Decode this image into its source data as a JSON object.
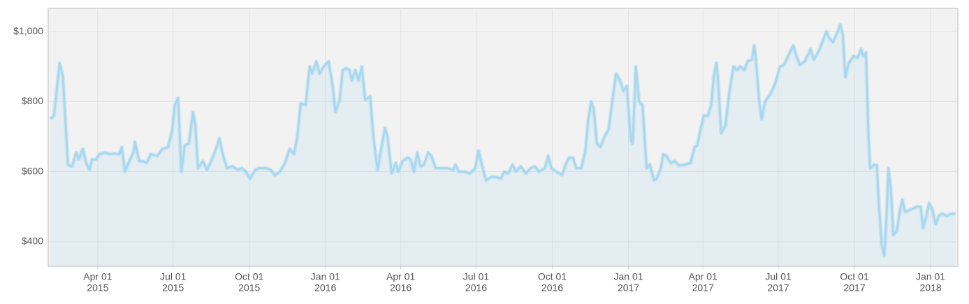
{
  "chart_data": {
    "type": "line",
    "x": [
      "2015-02-03",
      "2015-02-07",
      "2015-02-14",
      "2015-02-18",
      "2015-02-24",
      "2015-03-01",
      "2015-03-06",
      "2015-03-09",
      "2015-03-14",
      "2015-03-18",
      "2015-03-22",
      "2015-03-25",
      "2015-03-30",
      "2015-04-03",
      "2015-04-10",
      "2015-04-16",
      "2015-04-21",
      "2015-04-27",
      "2015-04-30",
      "2015-05-04",
      "2015-05-09",
      "2015-05-14",
      "2015-05-16",
      "2015-05-21",
      "2015-05-26",
      "2015-05-30",
      "2015-06-04",
      "2015-06-12",
      "2015-06-18",
      "2015-06-25",
      "2015-06-30",
      "2015-07-03",
      "2015-07-07",
      "2015-07-11",
      "2015-07-15",
      "2015-07-20",
      "2015-07-25",
      "2015-07-28",
      "2015-07-31",
      "2015-08-06",
      "2015-08-11",
      "2015-08-15",
      "2015-08-21",
      "2015-08-26",
      "2015-08-30",
      "2015-09-04",
      "2015-09-11",
      "2015-09-17",
      "2015-09-22",
      "2015-09-27",
      "2015-10-02",
      "2015-10-08",
      "2015-10-13",
      "2015-10-21",
      "2015-10-27",
      "2015-11-01",
      "2015-11-07",
      "2015-11-13",
      "2015-11-19",
      "2015-11-24",
      "2015-11-28",
      "2015-12-02",
      "2015-12-08",
      "2015-12-13",
      "2015-12-16",
      "2015-12-21",
      "2015-12-25",
      "2015-12-30",
      "2016-01-05",
      "2016-01-10",
      "2016-01-13",
      "2016-01-18",
      "2016-01-22",
      "2016-01-26",
      "2016-01-30",
      "2016-02-02",
      "2016-02-06",
      "2016-02-10",
      "2016-02-14",
      "2016-02-18",
      "2016-02-24",
      "2016-02-28",
      "2016-03-04",
      "2016-03-09",
      "2016-03-13",
      "2016-03-16",
      "2016-03-21",
      "2016-03-26",
      "2016-03-29",
      "2016-04-03",
      "2016-04-09",
      "2016-04-13",
      "2016-04-17",
      "2016-04-21",
      "2016-04-25",
      "2016-04-29",
      "2016-05-04",
      "2016-05-08",
      "2016-05-13",
      "2016-05-19",
      "2016-05-27",
      "2016-06-03",
      "2016-06-06",
      "2016-06-10",
      "2016-06-17",
      "2016-06-23",
      "2016-06-30",
      "2016-07-04",
      "2016-07-08",
      "2016-07-13",
      "2016-07-19",
      "2016-07-25",
      "2016-07-31",
      "2016-08-04",
      "2016-08-09",
      "2016-08-14",
      "2016-08-18",
      "2016-08-24",
      "2016-08-30",
      "2016-09-05",
      "2016-09-10",
      "2016-09-15",
      "2016-09-22",
      "2016-09-26",
      "2016-09-30",
      "2016-10-06",
      "2016-10-13",
      "2016-10-17",
      "2016-10-21",
      "2016-10-26",
      "2016-10-30",
      "2016-11-05",
      "2016-11-10",
      "2016-11-13",
      "2016-11-17",
      "2016-11-20",
      "2016-11-24",
      "2016-11-28",
      "2016-12-03",
      "2016-12-08",
      "2016-12-13",
      "2016-12-17",
      "2016-12-22",
      "2016-12-26",
      "2016-12-30",
      "2017-01-04",
      "2017-01-06",
      "2017-01-10",
      "2017-01-14",
      "2017-01-18",
      "2017-01-23",
      "2017-01-27",
      "2017-02-01",
      "2017-02-04",
      "2017-02-09",
      "2017-02-12",
      "2017-02-16",
      "2017-02-21",
      "2017-02-26",
      "2017-03-03",
      "2017-03-10",
      "2017-03-17",
      "2017-03-22",
      "2017-03-25",
      "2017-03-29",
      "2017-04-02",
      "2017-04-07",
      "2017-04-11",
      "2017-04-14",
      "2017-04-17",
      "2017-04-19",
      "2017-04-23",
      "2017-04-28",
      "2017-05-03",
      "2017-05-08",
      "2017-05-12",
      "2017-05-16",
      "2017-05-21",
      "2017-05-25",
      "2017-05-30",
      "2017-06-02",
      "2017-06-04",
      "2017-06-08",
      "2017-06-11",
      "2017-06-15",
      "2017-06-21",
      "2017-06-27",
      "2017-07-03",
      "2017-07-08",
      "2017-07-13",
      "2017-07-19",
      "2017-07-23",
      "2017-07-27",
      "2017-08-02",
      "2017-08-09",
      "2017-08-13",
      "2017-08-19",
      "2017-08-24",
      "2017-08-28",
      "2017-09-01",
      "2017-09-05",
      "2017-09-10",
      "2017-09-14",
      "2017-09-17",
      "2017-09-20",
      "2017-09-24",
      "2017-09-30",
      "2017-10-05",
      "2017-10-09",
      "2017-10-12",
      "2017-10-15",
      "2017-10-18",
      "2017-10-20",
      "2017-10-25",
      "2017-10-28",
      "2017-10-31",
      "2017-11-03",
      "2017-11-06",
      "2017-11-09",
      "2017-11-11",
      "2017-11-14",
      "2017-11-17",
      "2017-11-21",
      "2017-11-25",
      "2017-11-28",
      "2017-12-01",
      "2017-12-06",
      "2017-12-10",
      "2017-12-15",
      "2017-12-20",
      "2017-12-23",
      "2017-12-26",
      "2017-12-30",
      "2018-01-03",
      "2018-01-07",
      "2018-01-11",
      "2018-01-15",
      "2018-01-21",
      "2018-01-26",
      "2018-01-31"
    ],
    "values": [
      750,
      760,
      910,
      870,
      620,
      615,
      655,
      635,
      665,
      625,
      605,
      635,
      635,
      650,
      655,
      650,
      652,
      650,
      670,
      600,
      630,
      655,
      685,
      630,
      630,
      625,
      650,
      645,
      665,
      670,
      720,
      790,
      810,
      600,
      675,
      680,
      770,
      730,
      610,
      630,
      605,
      625,
      660,
      695,
      650,
      610,
      615,
      605,
      610,
      600,
      580,
      605,
      610,
      610,
      605,
      590,
      600,
      625,
      665,
      650,
      700,
      795,
      790,
      900,
      880,
      915,
      880,
      900,
      915,
      840,
      770,
      805,
      890,
      895,
      890,
      860,
      890,
      860,
      900,
      805,
      815,
      700,
      605,
      675,
      725,
      700,
      595,
      625,
      600,
      630,
      640,
      635,
      600,
      655,
      615,
      620,
      655,
      645,
      610,
      610,
      610,
      605,
      620,
      600,
      600,
      595,
      610,
      660,
      620,
      575,
      585,
      585,
      580,
      600,
      595,
      620,
      600,
      615,
      595,
      610,
      615,
      600,
      610,
      645,
      610,
      600,
      590,
      620,
      640,
      640,
      610,
      610,
      660,
      740,
      800,
      780,
      680,
      670,
      700,
      720,
      810,
      880,
      860,
      830,
      845,
      690,
      680,
      900,
      800,
      790,
      610,
      620,
      575,
      580,
      610,
      650,
      645,
      625,
      630,
      618,
      620,
      625,
      670,
      675,
      720,
      760,
      760,
      790,
      870,
      910,
      870,
      710,
      730,
      830,
      900,
      890,
      900,
      890,
      915,
      920,
      960,
      920,
      800,
      750,
      800,
      820,
      850,
      900,
      905,
      930,
      960,
      930,
      905,
      915,
      950,
      920,
      945,
      975,
      1000,
      980,
      970,
      995,
      1020,
      990,
      870,
      910,
      930,
      925,
      950,
      930,
      940,
      700,
      610,
      620,
      618,
      490,
      390,
      360,
      490,
      610,
      550,
      420,
      430,
      490,
      520,
      486,
      490,
      494,
      500,
      500,
      440,
      466,
      510,
      494,
      450,
      474,
      480,
      474,
      480,
      480
    ],
    "color": "#a8d8ee",
    "xlim": [
      "2015-02-01",
      "2018-02-02"
    ],
    "xticks": [
      {
        "value": "2015-04-01",
        "label": [
          "Apr 01",
          "2015"
        ]
      },
      {
        "value": "2015-07-01",
        "label": [
          "Jul 01",
          "2015"
        ]
      },
      {
        "value": "2015-10-01",
        "label": [
          "Oct 01",
          "2015"
        ]
      },
      {
        "value": "2016-01-01",
        "label": [
          "Jan 01",
          "2016"
        ]
      },
      {
        "value": "2016-04-01",
        "label": [
          "Apr 01",
          "2016"
        ]
      },
      {
        "value": "2016-07-01",
        "label": [
          "Jul 01",
          "2016"
        ]
      },
      {
        "value": "2016-10-01",
        "label": [
          "Oct 01",
          "2016"
        ]
      },
      {
        "value": "2017-01-01",
        "label": [
          "Jan 01",
          "2017"
        ]
      },
      {
        "value": "2017-04-01",
        "label": [
          "Apr 01",
          "2017"
        ]
      },
      {
        "value": "2017-07-01",
        "label": [
          "Jul 01",
          "2017"
        ]
      },
      {
        "value": "2017-10-01",
        "label": [
          "Oct 01",
          "2017"
        ]
      },
      {
        "value": "2018-01-01",
        "label": [
          "Jan 01",
          "2018"
        ]
      }
    ],
    "ylim": [
      332,
      1064
    ],
    "yticks": [
      {
        "value": 400,
        "label": "$400"
      },
      {
        "value": 600,
        "label": "$600"
      },
      {
        "value": 800,
        "label": "$800"
      },
      {
        "value": 1000,
        "label": "$1,000"
      }
    ],
    "grid": true
  }
}
